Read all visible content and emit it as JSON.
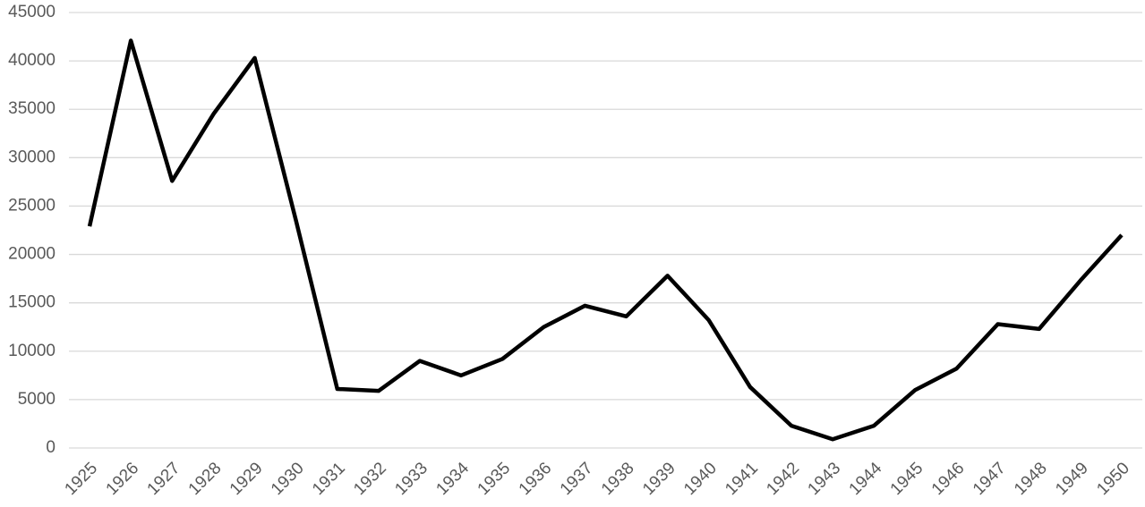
{
  "chart_data": {
    "type": "line",
    "categories": [
      "1925",
      "1926",
      "1927",
      "1928",
      "1929",
      "1930",
      "1931",
      "1932",
      "1933",
      "1934",
      "1935",
      "1936",
      "1937",
      "1938",
      "1939",
      "1940",
      "1941",
      "1942",
      "1943",
      "1944",
      "1945",
      "1946",
      "1947",
      "1948",
      "1949",
      "1950"
    ],
    "values": [
      22900,
      42100,
      27600,
      34500,
      40300,
      23500,
      6100,
      5900,
      9000,
      7500,
      9200,
      12500,
      14700,
      13600,
      17800,
      13200,
      6300,
      2300,
      900,
      2300,
      6000,
      8200,
      12800,
      12300,
      17300,
      22000
    ],
    "color": "#000000",
    "ylim": [
      0,
      45000
    ],
    "yticks": [
      0,
      5000,
      10000,
      15000,
      20000,
      25000,
      30000,
      35000,
      40000,
      45000
    ],
    "grid": true
  }
}
